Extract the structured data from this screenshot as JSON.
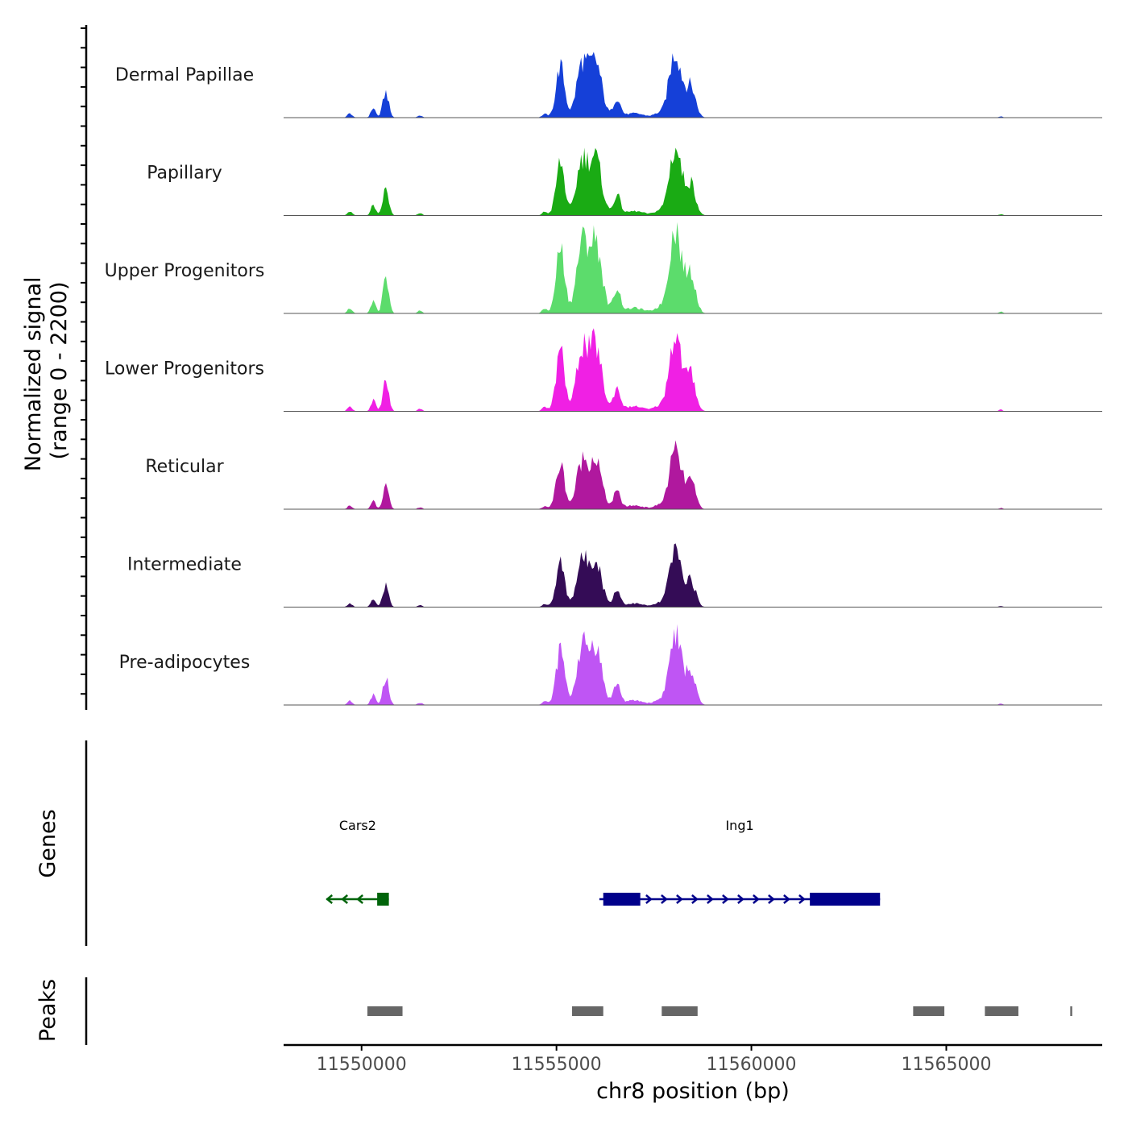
{
  "chart_data": {
    "type": "area",
    "chromosome": "chr8",
    "xlim": [
      11548000,
      11569000
    ],
    "xlabel": "chr8 position (bp)",
    "x_ticks": [
      11550000,
      11555000,
      11560000,
      11565000
    ],
    "x_tick_labels": [
      "11550000",
      "11555000",
      "11560000",
      "11565000"
    ],
    "signal": {
      "ylabel_line1": "Normalized signal",
      "ylabel_line2": "(range 0 - 2200)",
      "range": [
        0,
        2200
      ],
      "peak_shapes": [
        {
          "center": 11549700,
          "sigma": 60,
          "rel": 0.06
        },
        {
          "center": 11550300,
          "sigma": 60,
          "rel": 0.14
        },
        {
          "center": 11550620,
          "sigma": 75,
          "rel": 0.36
        },
        {
          "center": 11551500,
          "sigma": 60,
          "rel": 0.03
        },
        {
          "center": 11554700,
          "sigma": 70,
          "rel": 0.05
        },
        {
          "center": 11555100,
          "sigma": 110,
          "rel": 0.72
        },
        {
          "center": 11555650,
          "sigma": 140,
          "rel": 0.72
        },
        {
          "center": 11556000,
          "sigma": 160,
          "rel": 0.78
        },
        {
          "center": 11556550,
          "sigma": 90,
          "rel": 0.27
        },
        {
          "center": 11557000,
          "sigma": 250,
          "rel": 0.06
        },
        {
          "center": 11557600,
          "sigma": 120,
          "rel": 0.05
        },
        {
          "center": 11558050,
          "sigma": 160,
          "rel": 0.92
        },
        {
          "center": 11558450,
          "sigma": 120,
          "rel": 0.42
        },
        {
          "center": 11566400,
          "sigma": 50,
          "rel": 0.02
        }
      ],
      "tracks": [
        {
          "name": "Dermal Papillae",
          "color": "#1540d8",
          "max": 1700
        },
        {
          "name": "Papillary",
          "color": "#1aab14",
          "max": 1750
        },
        {
          "name": "Upper Progenitors",
          "color": "#5cdc6c",
          "max": 2200
        },
        {
          "name": "Lower Progenitors",
          "color": "#f020e4",
          "max": 2000
        },
        {
          "name": "Reticular",
          "color": "#b0189e",
          "max": 1500
        },
        {
          "name": "Intermediate",
          "color": "#340c56",
          "max": 1450
        },
        {
          "name": "Pre-adipocytes",
          "color": "#bf55f4",
          "max": 1820
        }
      ]
    },
    "genes": {
      "ylabel": "Genes",
      "items": [
        {
          "name": "Cars2",
          "strand": "-",
          "color": "#00640a",
          "start": 11549100,
          "end": 11550700,
          "exons": [
            [
              11550400,
              11550700
            ]
          ]
        },
        {
          "name": "Ing1",
          "strand": "+",
          "color": "#00008b",
          "start": 11556100,
          "end": 11563300,
          "exons": [
            [
              11556200,
              11557150
            ],
            [
              11561500,
              11563300
            ]
          ]
        }
      ]
    },
    "peaks": {
      "ylabel": "Peaks",
      "color": "#666666",
      "intervals": [
        [
          11550150,
          11551050
        ],
        [
          11555400,
          11556200
        ],
        [
          11557700,
          11558620
        ],
        [
          11564150,
          11564950
        ],
        [
          11565990,
          11566850
        ],
        [
          11568180,
          11568230
        ]
      ]
    }
  }
}
